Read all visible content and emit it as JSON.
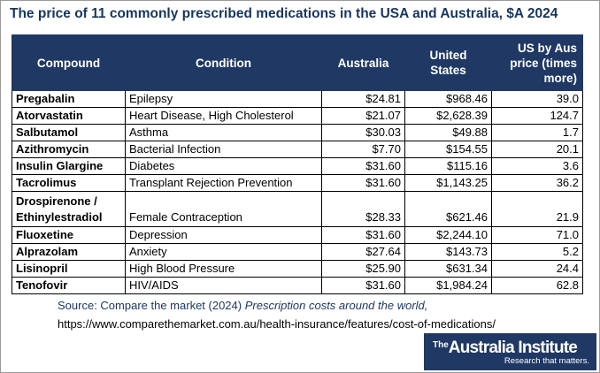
{
  "title": "The price of 11 commonly prescribed medications in the USA and Australia, $A 2024",
  "headers": {
    "compound": "Compound",
    "condition": "Condition",
    "australia": "Australia",
    "us_line1": "United",
    "us_line2": "States",
    "ratio_line1": "US by Aus",
    "ratio_line2": "price (times",
    "ratio_line3": "more)"
  },
  "rows": [
    {
      "compound": "Pregabalin",
      "condition": "Epilepsy",
      "australia": "$24.81",
      "us": "$968.46",
      "ratio": "39.0"
    },
    {
      "compound": "Atorvastatin",
      "condition": "Heart Disease, High Cholesterol",
      "australia": "$21.07",
      "us": "$2,628.39",
      "ratio": "124.7"
    },
    {
      "compound": "Salbutamol",
      "condition": "Asthma",
      "australia": "$30.03",
      "us": "$49.88",
      "ratio": "1.7"
    },
    {
      "compound": "Azithromycin",
      "condition": "Bacterial Infection",
      "australia": "$7.70",
      "us": "$154.55",
      "ratio": "20.1"
    },
    {
      "compound": "Insulin Glargine",
      "condition": "Diabetes",
      "australia": "$31.60",
      "us": "$115.16",
      "ratio": "3.6"
    },
    {
      "compound": "Tacrolimus",
      "condition": "Transplant Rejection Prevention",
      "australia": "$31.60",
      "us": "$1,143.25",
      "ratio": "36.2"
    },
    {
      "compound_line1": "Drospirenone /",
      "compound_line2": "Ethinylestradiol",
      "condition": "Female Contraception",
      "australia": "$28.33",
      "us": "$621.46",
      "ratio": "21.9"
    },
    {
      "compound": "Fluoxetine",
      "condition": "Depression",
      "australia": "$31.60",
      "us": "$2,244.10",
      "ratio": "71.0"
    },
    {
      "compound": "Alprazolam",
      "condition": "Anxiety",
      "australia": "$27.64",
      "us": "$143.73",
      "ratio": "5.2"
    },
    {
      "compound": "Lisinopril",
      "condition": "High Blood Pressure",
      "australia": "$25.90",
      "us": "$631.34",
      "ratio": "24.4"
    },
    {
      "compound": "Tenofovir",
      "condition": "HIV/AIDS",
      "australia": "$31.60",
      "us": "$1,984.24",
      "ratio": "62.8"
    }
  ],
  "source": {
    "prefix": "Source: Compare the market (2024) ",
    "title": "Prescription costs around the world,",
    "url": "https://www.comparethemarket.com.au/health-insurance/features/cost-of-medications/"
  },
  "logo": {
    "the": "The",
    "name": "Australia Institute",
    "tagline": "Research that matters."
  },
  "colors": {
    "header_bg": "#1f3864",
    "title_text": "#17365d",
    "source_text": "#1f3864"
  }
}
